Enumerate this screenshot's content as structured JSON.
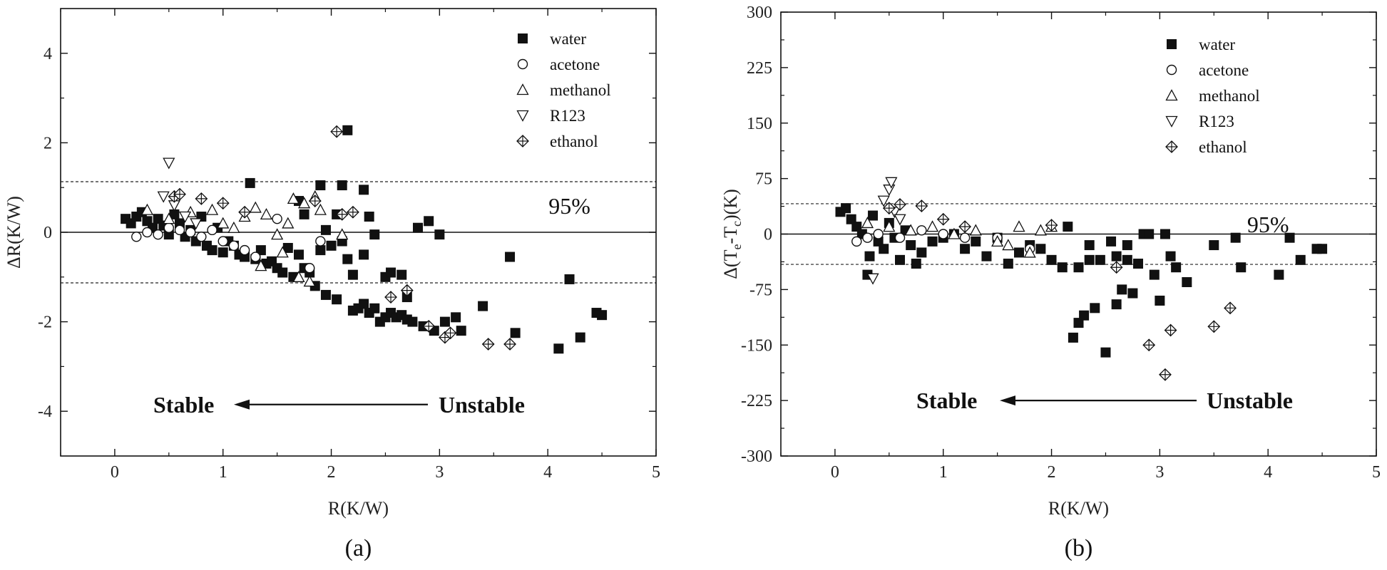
{
  "chart_data": [
    {
      "type": "scatter",
      "panel_label": "(a)",
      "xlabel": "R(K/W)",
      "ylabel": "ΔR(K/W)",
      "xlim": [
        -0.5,
        5
      ],
      "ylim": [
        -5,
        5
      ],
      "xticks": [
        "0",
        "1",
        "2",
        "3",
        "4",
        "5"
      ],
      "yticks": [
        "-4",
        "-2",
        "0",
        "2",
        "4"
      ],
      "ref_lines": [
        1.13,
        -1.13
      ],
      "ref_label": "95%",
      "annotation": {
        "left": "Stable",
        "right": "Unstable",
        "y": -3.85,
        "x_left": 1.05,
        "x_right": 2.95
      },
      "legend_position": "top-right",
      "series": [
        {
          "name": "water",
          "marker": "filled-square",
          "points": [
            [
              0.1,
              0.3
            ],
            [
              0.15,
              0.2
            ],
            [
              0.2,
              0.35
            ],
            [
              0.25,
              0.45
            ],
            [
              0.3,
              0.25
            ],
            [
              0.35,
              0.1
            ],
            [
              0.4,
              0.3
            ],
            [
              0.45,
              0.15
            ],
            [
              0.5,
              -0.05
            ],
            [
              0.55,
              0.4
            ],
            [
              0.6,
              0.2
            ],
            [
              0.65,
              -0.1
            ],
            [
              0.7,
              0.05
            ],
            [
              0.75,
              -0.2
            ],
            [
              0.8,
              0.35
            ],
            [
              0.85,
              -0.3
            ],
            [
              0.9,
              -0.4
            ],
            [
              0.95,
              0.1
            ],
            [
              1.0,
              -0.45
            ],
            [
              1.05,
              -0.2
            ],
            [
              1.1,
              -0.3
            ],
            [
              1.15,
              -0.5
            ],
            [
              1.2,
              -0.55
            ],
            [
              1.25,
              1.1
            ],
            [
              1.3,
              -0.6
            ],
            [
              1.35,
              -0.4
            ],
            [
              1.4,
              -0.7
            ],
            [
              1.45,
              -0.65
            ],
            [
              1.5,
              -0.8
            ],
            [
              1.55,
              -0.9
            ],
            [
              1.6,
              -0.35
            ],
            [
              1.65,
              -1.0
            ],
            [
              1.7,
              -0.5
            ],
            [
              1.75,
              -0.8
            ],
            [
              1.8,
              -0.9
            ],
            [
              1.85,
              -1.2
            ],
            [
              1.9,
              -0.4
            ],
            [
              1.95,
              -1.4
            ],
            [
              2.0,
              -0.3
            ],
            [
              2.05,
              -1.5
            ],
            [
              2.1,
              -0.2
            ],
            [
              2.15,
              2.28
            ],
            [
              2.2,
              -1.75
            ],
            [
              2.25,
              -1.7
            ],
            [
              2.3,
              -1.6
            ],
            [
              2.35,
              -1.8
            ],
            [
              2.4,
              -1.7
            ],
            [
              2.45,
              -2.0
            ],
            [
              2.5,
              -1.9
            ],
            [
              2.55,
              -1.8
            ],
            [
              2.6,
              -1.9
            ],
            [
              2.65,
              -1.85
            ],
            [
              2.7,
              -1.95
            ],
            [
              2.75,
              -2.0
            ],
            [
              2.8,
              0.1
            ],
            [
              2.85,
              -2.1
            ],
            [
              2.9,
              0.25
            ],
            [
              2.95,
              -2.2
            ],
            [
              3.0,
              -0.05
            ],
            [
              3.05,
              -2.0
            ],
            [
              3.15,
              -1.9
            ],
            [
              3.2,
              -2.2
            ],
            [
              3.4,
              -1.65
            ],
            [
              3.65,
              -0.55
            ],
            [
              3.7,
              -2.25
            ],
            [
              4.1,
              -2.6
            ],
            [
              4.2,
              -1.05
            ],
            [
              4.3,
              -2.35
            ],
            [
              4.45,
              -1.8
            ],
            [
              4.5,
              -1.85
            ],
            [
              1.9,
              1.05
            ],
            [
              2.1,
              1.05
            ],
            [
              2.3,
              0.95
            ],
            [
              2.35,
              0.35
            ],
            [
              2.4,
              -0.05
            ],
            [
              2.05,
              0.4
            ],
            [
              1.95,
              0.05
            ],
            [
              2.2,
              -0.95
            ],
            [
              2.5,
              -1.0
            ],
            [
              2.55,
              -0.9
            ],
            [
              2.65,
              -0.95
            ],
            [
              2.7,
              -1.45
            ],
            [
              2.3,
              -0.5
            ],
            [
              2.15,
              -0.6
            ],
            [
              1.75,
              0.4
            ],
            [
              1.7,
              0.7
            ]
          ]
        },
        {
          "name": "acetone",
          "marker": "open-circle",
          "points": [
            [
              0.2,
              -0.1
            ],
            [
              0.3,
              0.0
            ],
            [
              0.4,
              -0.05
            ],
            [
              0.5,
              0.1
            ],
            [
              0.6,
              0.05
            ],
            [
              0.7,
              0.0
            ],
            [
              0.8,
              -0.1
            ],
            [
              0.9,
              0.05
            ],
            [
              1.0,
              -0.2
            ],
            [
              1.1,
              -0.3
            ],
            [
              1.2,
              -0.4
            ],
            [
              1.3,
              -0.55
            ],
            [
              1.5,
              0.3
            ],
            [
              1.8,
              -0.8
            ],
            [
              1.9,
              -0.2
            ]
          ]
        },
        {
          "name": "methanol",
          "marker": "open-triangle-up",
          "points": [
            [
              0.3,
              0.5
            ],
            [
              0.5,
              0.3
            ],
            [
              0.7,
              0.45
            ],
            [
              0.9,
              0.5
            ],
            [
              1.0,
              0.2
            ],
            [
              1.1,
              0.1
            ],
            [
              1.2,
              0.35
            ],
            [
              1.3,
              0.55
            ],
            [
              1.4,
              0.4
            ],
            [
              1.5,
              -0.05
            ],
            [
              1.6,
              0.2
            ],
            [
              1.65,
              0.75
            ],
            [
              1.7,
              -1.0
            ],
            [
              1.75,
              0.65
            ],
            [
              1.8,
              -1.1
            ],
            [
              1.85,
              0.8
            ],
            [
              1.9,
              0.5
            ],
            [
              2.1,
              -0.05
            ],
            [
              1.55,
              -0.45
            ],
            [
              1.35,
              -0.75
            ]
          ]
        },
        {
          "name": "R123",
          "marker": "open-triangle-down",
          "points": [
            [
              0.5,
              1.55
            ],
            [
              0.45,
              0.8
            ],
            [
              0.55,
              0.6
            ],
            [
              0.65,
              0.35
            ],
            [
              0.75,
              0.2
            ]
          ]
        },
        {
          "name": "ethanol",
          "marker": "crossed-diamond",
          "points": [
            [
              0.55,
              0.8
            ],
            [
              0.6,
              0.85
            ],
            [
              0.8,
              0.75
            ],
            [
              1.0,
              0.65
            ],
            [
              1.2,
              0.45
            ],
            [
              1.85,
              0.7
            ],
            [
              2.05,
              2.25
            ],
            [
              2.1,
              0.4
            ],
            [
              2.2,
              0.45
            ],
            [
              2.55,
              -1.45
            ],
            [
              2.7,
              -1.3
            ],
            [
              2.9,
              -2.1
            ],
            [
              3.05,
              -2.35
            ],
            [
              3.1,
              -2.25
            ],
            [
              3.45,
              -2.5
            ],
            [
              3.65,
              -2.5
            ]
          ]
        }
      ]
    },
    {
      "type": "scatter",
      "panel_label": "(b)",
      "xlabel": "R(K/W)",
      "ylabel_main": "Δ(T",
      "ylabel_sub1": "e",
      "ylabel_mid": "-T",
      "ylabel_sub2": "c",
      "ylabel_end": ")(K)",
      "xlim": [
        -0.5,
        5
      ],
      "ylim": [
        -300,
        300
      ],
      "xticks": [
        "0",
        "1",
        "2",
        "3",
        "4",
        "5"
      ],
      "yticks": [
        "-300",
        "-225",
        "-150",
        "-75",
        "0",
        "75",
        "150",
        "225",
        "300"
      ],
      "ref_lines": [
        41,
        -41
      ],
      "ref_label": "95%",
      "annotation": {
        "left": "Stable",
        "right": "Unstable",
        "y": -225,
        "x_left": 1.05,
        "x_right": 3.4
      },
      "legend_position": "top-right",
      "series": [
        {
          "name": "water",
          "marker": "filled-square",
          "points": [
            [
              0.05,
              30
            ],
            [
              0.1,
              35
            ],
            [
              0.15,
              20
            ],
            [
              0.2,
              10
            ],
            [
              0.25,
              0
            ],
            [
              0.3,
              -55
            ],
            [
              0.32,
              -30
            ],
            [
              0.35,
              25
            ],
            [
              0.4,
              -10
            ],
            [
              0.45,
              -20
            ],
            [
              0.5,
              15
            ],
            [
              0.55,
              -5
            ],
            [
              0.6,
              -35
            ],
            [
              0.65,
              5
            ],
            [
              0.7,
              -15
            ],
            [
              0.75,
              -40
            ],
            [
              0.8,
              -25
            ],
            [
              0.9,
              -10
            ],
            [
              1.0,
              -5
            ],
            [
              1.1,
              0
            ],
            [
              1.2,
              -20
            ],
            [
              1.3,
              -10
            ],
            [
              1.4,
              -30
            ],
            [
              1.5,
              -5
            ],
            [
              1.6,
              -40
            ],
            [
              1.7,
              -25
            ],
            [
              1.8,
              -15
            ],
            [
              1.9,
              -20
            ],
            [
              2.0,
              -35
            ],
            [
              2.1,
              -45
            ],
            [
              2.15,
              10
            ],
            [
              2.2,
              -140
            ],
            [
              2.25,
              -120
            ],
            [
              2.3,
              -110
            ],
            [
              2.35,
              -15
            ],
            [
              2.4,
              -100
            ],
            [
              2.45,
              -35
            ],
            [
              2.5,
              -160
            ],
            [
              2.55,
              -10
            ],
            [
              2.6,
              -95
            ],
            [
              2.65,
              -75
            ],
            [
              2.7,
              -15
            ],
            [
              2.75,
              -80
            ],
            [
              2.8,
              -40
            ],
            [
              2.85,
              0
            ],
            [
              2.9,
              0
            ],
            [
              2.95,
              -55
            ],
            [
              3.0,
              -90
            ],
            [
              3.05,
              0
            ],
            [
              3.1,
              -30
            ],
            [
              3.15,
              -45
            ],
            [
              3.25,
              -65
            ],
            [
              3.5,
              -15
            ],
            [
              3.7,
              -5
            ],
            [
              3.75,
              -45
            ],
            [
              4.1,
              -55
            ],
            [
              4.2,
              -5
            ],
            [
              4.3,
              -35
            ],
            [
              4.45,
              -20
            ],
            [
              4.5,
              -20
            ],
            [
              2.25,
              -45
            ],
            [
              2.35,
              -35
            ],
            [
              2.6,
              -30
            ],
            [
              2.7,
              -35
            ]
          ]
        },
        {
          "name": "acetone",
          "marker": "open-circle",
          "points": [
            [
              0.2,
              -10
            ],
            [
              0.3,
              -5
            ],
            [
              0.4,
              0
            ],
            [
              0.6,
              -5
            ],
            [
              0.8,
              5
            ],
            [
              1.0,
              0
            ],
            [
              1.2,
              -5
            ],
            [
              1.5,
              -5
            ],
            [
              1.8,
              -20
            ]
          ]
        },
        {
          "name": "methanol",
          "marker": "open-triangle-up",
          "points": [
            [
              0.3,
              15
            ],
            [
              0.5,
              10
            ],
            [
              0.7,
              5
            ],
            [
              0.9,
              10
            ],
            [
              1.1,
              0
            ],
            [
              1.3,
              5
            ],
            [
              1.5,
              -10
            ],
            [
              1.6,
              -15
            ],
            [
              1.7,
              10
            ],
            [
              1.8,
              -25
            ],
            [
              1.9,
              5
            ],
            [
              2.0,
              10
            ]
          ]
        },
        {
          "name": "R123",
          "marker": "open-triangle-down",
          "points": [
            [
              0.35,
              -60
            ],
            [
              0.45,
              45
            ],
            [
              0.5,
              60
            ],
            [
              0.52,
              70
            ],
            [
              0.55,
              30
            ],
            [
              0.6,
              20
            ]
          ]
        },
        {
          "name": "ethanol",
          "marker": "crossed-diamond",
          "points": [
            [
              0.5,
              35
            ],
            [
              0.6,
              40
            ],
            [
              0.8,
              38
            ],
            [
              1.0,
              20
            ],
            [
              1.2,
              10
            ],
            [
              2.0,
              12
            ],
            [
              2.6,
              -45
            ],
            [
              2.9,
              -150
            ],
            [
              3.1,
              -130
            ],
            [
              3.05,
              -190
            ],
            [
              3.5,
              -125
            ],
            [
              3.65,
              -100
            ]
          ]
        }
      ]
    }
  ]
}
